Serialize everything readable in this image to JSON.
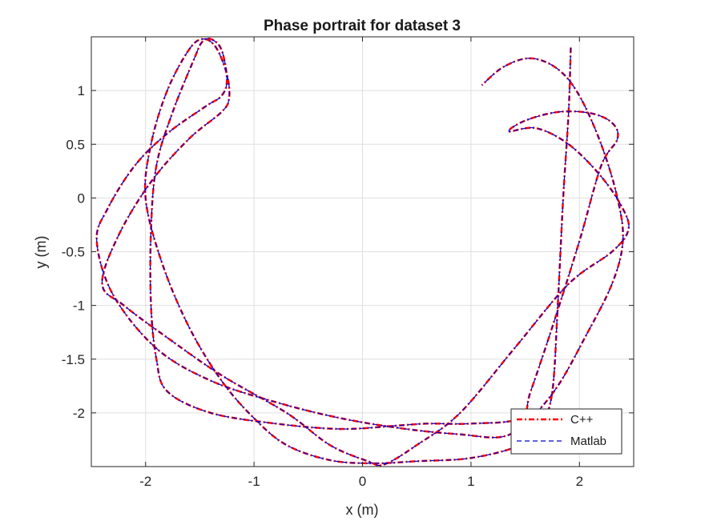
{
  "chart_data": {
    "type": "line",
    "title": "Phase portrait for dataset 3",
    "xlabel": "x (m)",
    "ylabel": "y (m)",
    "xlim": [
      -2.5,
      2.5
    ],
    "ylim": [
      -2.5,
      1.5
    ],
    "xticks": [
      -2,
      -1,
      0,
      1,
      2
    ],
    "yticks": [
      -2,
      -1.5,
      -1,
      -0.5,
      0,
      0.5,
      1
    ],
    "xtick_labels": [
      "-2",
      "-1",
      "0",
      "1",
      "2"
    ],
    "ytick_labels": [
      "-2",
      "-1.5",
      "-1",
      "-0.5",
      "0",
      "0.5",
      "1"
    ],
    "grid": true,
    "legend_position": "bottom-right",
    "series": [
      {
        "name": "C++",
        "color": "#ff0000",
        "style": "dash-dot",
        "path": [
          [
            1.92,
            1.4
          ],
          [
            1.9,
            0.8
          ],
          [
            1.85,
            0.0
          ],
          [
            1.8,
            -1.0
          ],
          [
            1.75,
            -1.8
          ],
          [
            1.65,
            -2.1
          ],
          [
            1.45,
            -2.3
          ],
          [
            1.0,
            -2.42
          ],
          [
            0.5,
            -2.45
          ],
          [
            0.1,
            -2.47
          ],
          [
            -0.3,
            -2.44
          ],
          [
            -0.7,
            -2.3
          ],
          [
            -1.0,
            -2.05
          ],
          [
            -1.3,
            -1.7
          ],
          [
            -1.6,
            -1.2
          ],
          [
            -1.85,
            -0.6
          ],
          [
            -2.0,
            0.0
          ],
          [
            -1.95,
            0.5
          ],
          [
            -1.8,
            1.0
          ],
          [
            -1.6,
            1.38
          ],
          [
            -1.47,
            1.48
          ],
          [
            -1.35,
            1.4
          ],
          [
            -1.25,
            1.15
          ],
          [
            -1.23,
            0.93
          ],
          [
            -1.3,
            0.8
          ],
          [
            -1.6,
            0.55
          ],
          [
            -1.95,
            0.15
          ],
          [
            -2.25,
            -0.35
          ],
          [
            -2.4,
            -0.8
          ],
          [
            -2.2,
            -1.0
          ],
          [
            -1.8,
            -1.3
          ],
          [
            -1.3,
            -1.65
          ],
          [
            -0.7,
            -2.0
          ],
          [
            -0.3,
            -2.3
          ],
          [
            0.05,
            -2.45
          ],
          [
            0.2,
            -2.48
          ],
          [
            0.5,
            -2.3
          ],
          [
            0.9,
            -2.0
          ],
          [
            1.4,
            -1.4
          ],
          [
            1.9,
            -0.8
          ],
          [
            2.3,
            -0.5
          ],
          [
            2.45,
            -0.3
          ],
          [
            2.4,
            -0.1
          ],
          [
            2.2,
            0.2
          ],
          [
            1.9,
            0.5
          ],
          [
            1.6,
            0.65
          ],
          [
            1.35,
            0.62
          ],
          [
            1.5,
            0.72
          ],
          [
            1.8,
            0.8
          ],
          [
            2.1,
            0.79
          ],
          [
            2.3,
            0.7
          ],
          [
            2.35,
            0.55
          ],
          [
            2.2,
            0.3
          ],
          [
            2.0,
            -0.4
          ],
          [
            1.75,
            -1.2
          ],
          [
            1.55,
            -1.8
          ],
          [
            1.45,
            -2.05
          ],
          [
            1.0,
            -2.1
          ],
          [
            0.6,
            -2.1
          ],
          [
            0.3,
            -2.12
          ],
          [
            -0.2,
            -2.15
          ],
          [
            -0.8,
            -2.1
          ],
          [
            -1.4,
            -2.0
          ],
          [
            -1.8,
            -1.8
          ],
          [
            -1.9,
            -1.5
          ],
          [
            -1.95,
            -1.0
          ],
          [
            -1.95,
            -0.3
          ],
          [
            -1.9,
            0.3
          ],
          [
            -1.75,
            0.8
          ],
          [
            -1.55,
            1.3
          ],
          [
            -1.48,
            1.45
          ],
          [
            -1.4,
            1.48
          ],
          [
            -1.3,
            1.38
          ],
          [
            -1.25,
            1.1
          ],
          [
            -1.3,
            0.95
          ],
          [
            -1.45,
            0.85
          ],
          [
            -1.8,
            0.6
          ],
          [
            -2.1,
            0.3
          ],
          [
            -2.35,
            -0.1
          ],
          [
            -2.45,
            -0.4
          ],
          [
            -2.3,
            -0.9
          ],
          [
            -1.9,
            -1.4
          ],
          [
            -1.4,
            -1.7
          ],
          [
            -0.8,
            -1.9
          ],
          [
            -0.2,
            -2.05
          ],
          [
            0.4,
            -2.15
          ],
          [
            0.9,
            -2.2
          ],
          [
            1.3,
            -2.22
          ],
          [
            1.55,
            -2.05
          ],
          [
            1.8,
            -1.75
          ],
          [
            2.05,
            -1.3
          ],
          [
            2.3,
            -0.8
          ],
          [
            2.4,
            -0.4
          ],
          [
            2.35,
            0.0
          ],
          [
            2.2,
            0.5
          ],
          [
            2.0,
            0.95
          ],
          [
            1.8,
            1.2
          ],
          [
            1.55,
            1.3
          ],
          [
            1.3,
            1.22
          ],
          [
            1.1,
            1.05
          ]
        ]
      },
      {
        "name": "Matlab",
        "color": "#0000cc",
        "style": "dashed",
        "path": []
      }
    ]
  }
}
